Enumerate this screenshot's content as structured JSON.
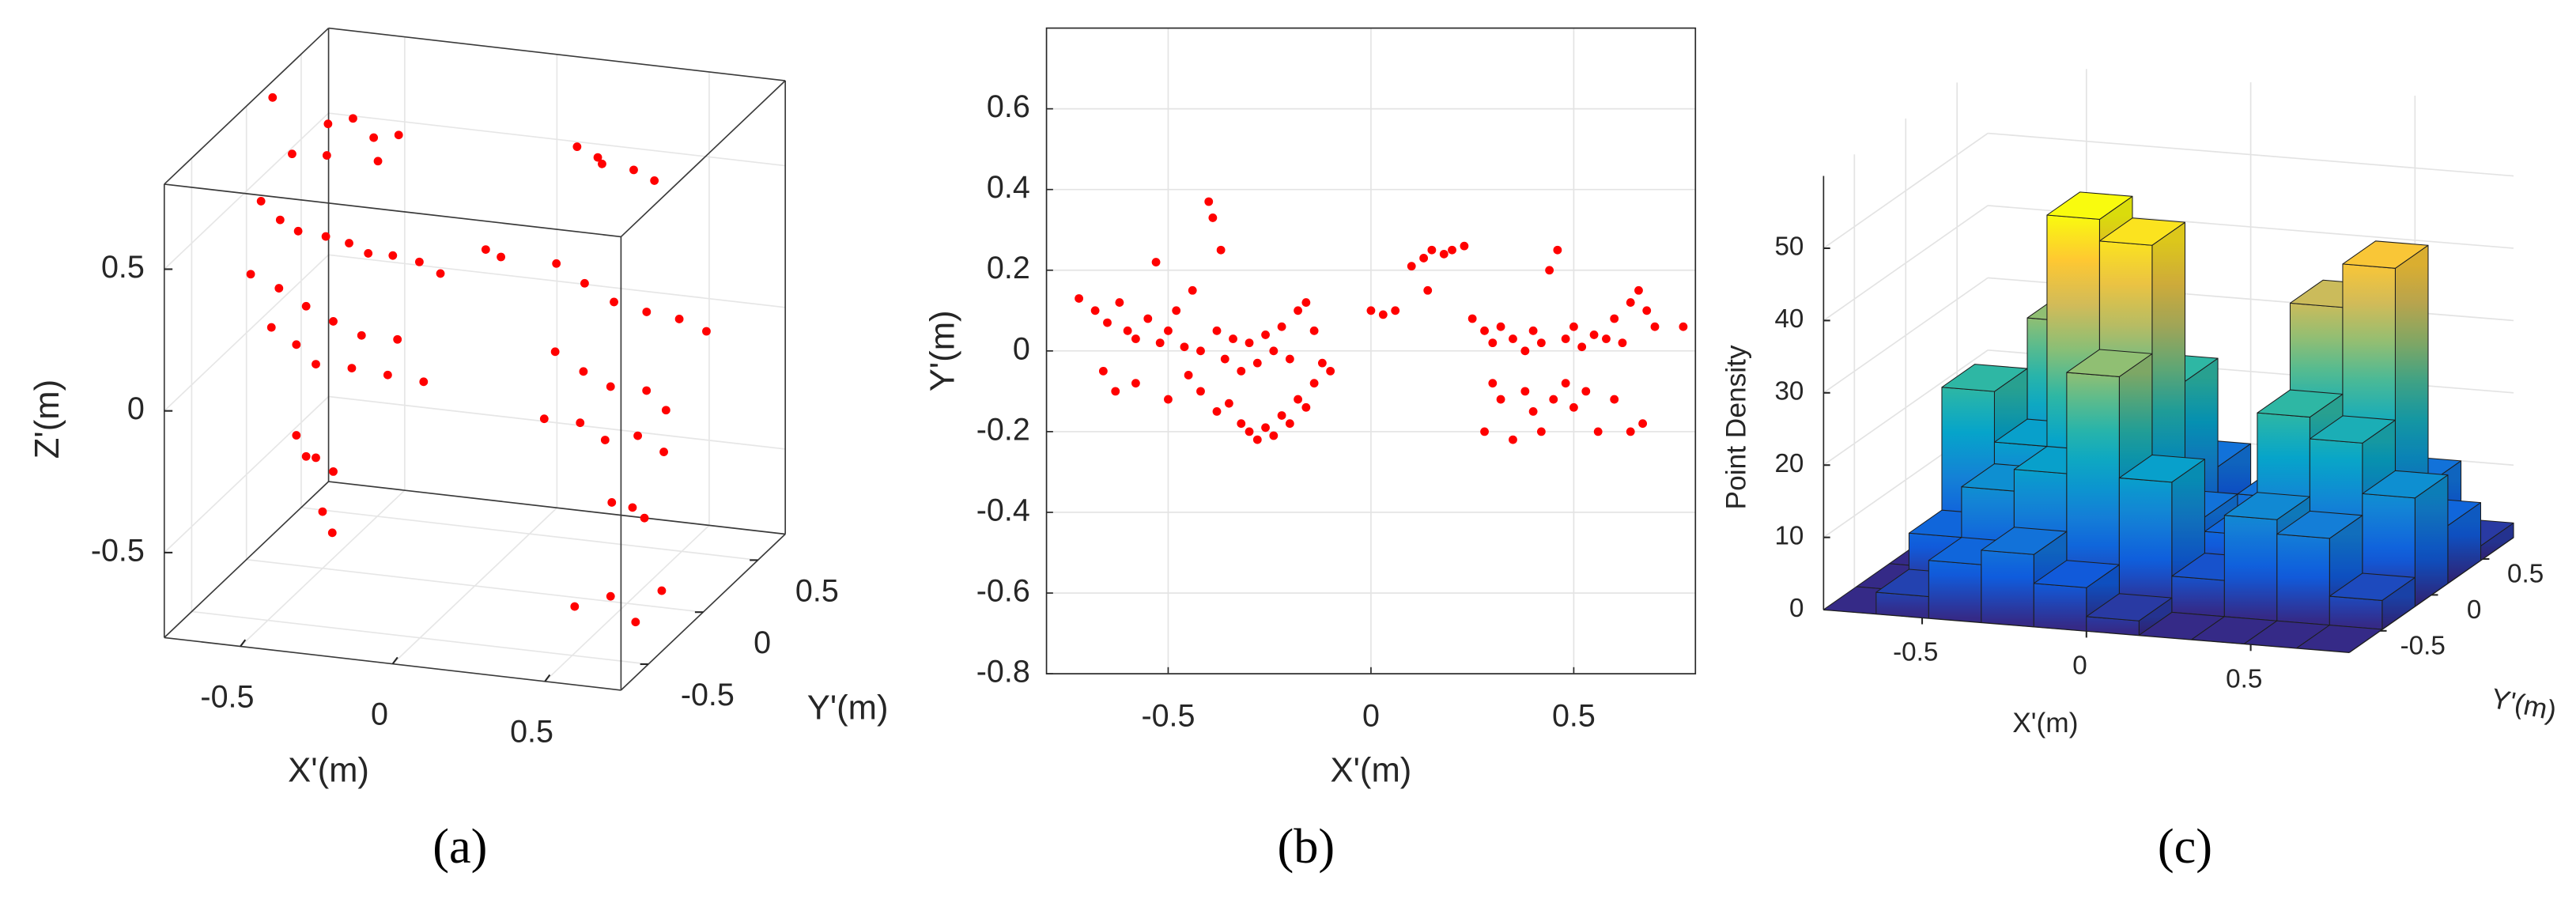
{
  "chart_data": [
    {
      "type": "scatter3d",
      "caption": "(a)",
      "xlabel": "X'(m)",
      "ylabel": "Y'(m)",
      "zlabel": "Z'(m)",
      "color": "#ff0000",
      "x": [
        -0.7,
        -0.6,
        -0.5,
        -0.45,
        -0.4,
        -0.35,
        -0.3,
        -0.25,
        -0.72,
        -0.65,
        -0.58,
        -0.5,
        -0.42,
        -0.35,
        -0.28,
        -0.2,
        -0.12,
        -0.7,
        -0.6,
        -0.5,
        -0.4,
        -0.3,
        -0.2,
        -0.65,
        -0.55,
        -0.45,
        -0.35,
        -0.25,
        -0.15,
        -0.55,
        -0.5,
        -0.45,
        -0.4,
        -0.5,
        -0.45,
        0.0,
        0.05,
        0.3,
        0.35,
        0.4,
        0.45,
        0.5,
        0.25,
        0.35,
        0.45,
        0.55,
        0.65,
        0.75,
        0.3,
        0.4,
        0.5,
        0.6,
        0.7,
        0.3,
        0.4,
        0.5,
        0.6,
        0.7,
        0.45,
        0.5,
        0.55,
        0.4,
        0.5,
        0.6,
        0.65
      ],
      "y": [
        0.1,
        0.0,
        0.05,
        -0.1,
        0.0,
        0.05,
        -0.05,
        0.0,
        0.05,
        0.03,
        0.0,
        0.03,
        0.02,
        0.0,
        0.03,
        0.05,
        0.02,
        -0.1,
        -0.12,
        -0.15,
        -0.18,
        -0.2,
        -0.15,
        -0.05,
        -0.1,
        -0.2,
        -0.15,
        -0.1,
        -0.05,
        -0.1,
        -0.15,
        -0.2,
        -0.18,
        0.0,
        -0.05,
        0.1,
        0.1,
        0.1,
        0.15,
        0.05,
        0.2,
        0.25,
        0.05,
        0.03,
        0.02,
        0.04,
        0.06,
        0.03,
        -0.1,
        -0.12,
        -0.15,
        -0.1,
        -0.2,
        -0.2,
        -0.15,
        -0.2,
        -0.18,
        -0.22,
        0.0,
        0.05,
        0.02,
        -0.2,
        -0.15,
        -0.2,
        -0.1
      ],
      "z": [
        0.8,
        0.65,
        0.75,
        0.7,
        0.8,
        0.72,
        0.68,
        0.76,
        0.45,
        0.4,
        0.38,
        0.36,
        0.35,
        0.33,
        0.32,
        0.3,
        0.28,
        0.25,
        0.22,
        0.18,
        0.15,
        0.12,
        0.1,
        0.05,
        0.02,
        0.0,
        -0.02,
        -0.05,
        -0.08,
        -0.3,
        -0.35,
        -0.33,
        -0.38,
        -0.6,
        -0.65,
        0.35,
        0.33,
        0.75,
        0.7,
        0.72,
        0.65,
        0.6,
        0.35,
        0.3,
        0.25,
        0.22,
        0.2,
        0.18,
        0.1,
        0.05,
        0.02,
        0.0,
        -0.02,
        -0.1,
        -0.12,
        -0.15,
        -0.13,
        -0.16,
        -0.45,
        -0.48,
        -0.5,
        -0.75,
        -0.72,
        -0.78,
        -0.7
      ],
      "xlim": [
        -0.75,
        0.75
      ],
      "ylim": [
        -0.75,
        0.75
      ],
      "zlim": [
        -0.8,
        0.8
      ],
      "xticks": [
        -0.5,
        0,
        0.5
      ],
      "yticks": [
        -0.5,
        0,
        0.5
      ],
      "zticks": [
        -0.5,
        0,
        0.5
      ],
      "grid": true
    },
    {
      "type": "scatter",
      "caption": "(b)",
      "xlabel": "X'(m)",
      "ylabel": "Y'(m)",
      "color": "#ff0000",
      "x": [
        -0.72,
        -0.68,
        -0.65,
        -0.62,
        -0.6,
        -0.58,
        -0.55,
        -0.53,
        -0.52,
        -0.5,
        -0.48,
        -0.46,
        -0.44,
        -0.42,
        -0.4,
        -0.39,
        -0.38,
        -0.37,
        -0.36,
        -0.34,
        -0.32,
        -0.3,
        -0.28,
        -0.26,
        -0.24,
        -0.22,
        -0.2,
        -0.18,
        -0.16,
        -0.14,
        -0.12,
        -0.1,
        -0.66,
        -0.63,
        -0.58,
        -0.5,
        -0.45,
        -0.42,
        -0.38,
        -0.35,
        -0.32,
        -0.3,
        -0.28,
        -0.26,
        -0.24,
        -0.22,
        -0.2,
        -0.18,
        -0.16,
        -0.14,
        0.0,
        0.03,
        0.06,
        0.1,
        0.13,
        0.15,
        0.18,
        0.2,
        0.23,
        0.14,
        0.25,
        0.28,
        0.3,
        0.32,
        0.35,
        0.38,
        0.4,
        0.42,
        0.44,
        0.46,
        0.48,
        0.5,
        0.52,
        0.55,
        0.58,
        0.6,
        0.62,
        0.64,
        0.66,
        0.68,
        0.7,
        0.77,
        0.28,
        0.3,
        0.32,
        0.35,
        0.38,
        0.4,
        0.42,
        0.45,
        0.48,
        0.5,
        0.53,
        0.56,
        0.6,
        0.64,
        0.67
      ],
      "y": [
        0.13,
        0.1,
        0.07,
        0.12,
        0.05,
        0.03,
        0.08,
        0.22,
        0.02,
        0.05,
        0.1,
        0.01,
        0.15,
        0.0,
        0.37,
        0.33,
        0.05,
        0.25,
        -0.02,
        0.03,
        -0.05,
        0.02,
        -0.03,
        0.04,
        0.0,
        0.06,
        -0.02,
        0.1,
        0.12,
        0.05,
        -0.03,
        -0.05,
        -0.05,
        -0.1,
        -0.08,
        -0.12,
        -0.06,
        -0.1,
        -0.15,
        -0.13,
        -0.18,
        -0.2,
        -0.22,
        -0.19,
        -0.21,
        -0.16,
        -0.18,
        -0.12,
        -0.14,
        -0.08,
        0.1,
        0.09,
        0.1,
        0.21,
        0.23,
        0.25,
        0.24,
        0.25,
        0.26,
        0.15,
        0.08,
        0.05,
        0.02,
        0.06,
        0.03,
        0.0,
        0.05,
        0.02,
        0.2,
        0.25,
        0.03,
        0.06,
        0.01,
        0.04,
        0.03,
        0.08,
        0.02,
        0.12,
        0.15,
        0.1,
        0.06,
        0.06,
        -0.2,
        -0.08,
        -0.12,
        -0.22,
        -0.1,
        -0.15,
        -0.2,
        -0.12,
        -0.08,
        -0.14,
        -0.1,
        -0.2,
        -0.12,
        -0.2,
        -0.18
      ],
      "xlim": [
        -0.8,
        0.8
      ],
      "ylim": [
        -0.8,
        0.8
      ],
      "xticks": [
        -0.5,
        0,
        0.5
      ],
      "yticks": [
        -0.8,
        -0.6,
        -0.4,
        -0.2,
        0,
        0.2,
        0.4,
        0.6
      ],
      "grid": true
    },
    {
      "type": "bar3d",
      "caption": "(c)",
      "xlabel": "X'(m)",
      "ylabel": "Y'(m)",
      "zlabel": "Point Density",
      "xbins": [
        -0.8,
        -0.64,
        -0.48,
        -0.32,
        -0.16,
        0,
        0.16,
        0.32,
        0.48,
        0.64,
        0.8
      ],
      "ybins": [
        -0.8,
        -0.48,
        -0.16,
        0.16,
        0.48,
        0.8
      ],
      "values": [
        [
          0,
          3,
          8,
          10,
          6,
          2,
          0,
          0,
          0,
          0
        ],
        [
          0,
          8,
          15,
          18,
          32,
          18,
          5,
          14,
          12,
          4
        ],
        [
          0,
          25,
          18,
          50,
          47,
          10,
          8,
          25,
          22,
          15
        ],
        [
          0,
          5,
          32,
          37,
          25,
          6,
          10,
          37,
          43,
          8
        ],
        [
          0,
          0,
          5,
          8,
          10,
          2,
          4,
          12,
          10,
          2
        ]
      ],
      "colormap": [
        "#352a87",
        "#0f5cdd",
        "#1481d6",
        "#06a4ca",
        "#2eb7a4",
        "#87bf77",
        "#d1bb59",
        "#fec832",
        "#f9fb0e"
      ],
      "xlim": [
        -0.8,
        0.8
      ],
      "ylim": [
        -0.8,
        0.8
      ],
      "zlim": [
        0,
        60
      ],
      "xticks": [
        -0.5,
        0,
        0.5
      ],
      "yticks": [
        -0.5,
        0,
        0.5
      ],
      "zticks": [
        0,
        10,
        20,
        30,
        40,
        50
      ],
      "grid": true
    }
  ]
}
